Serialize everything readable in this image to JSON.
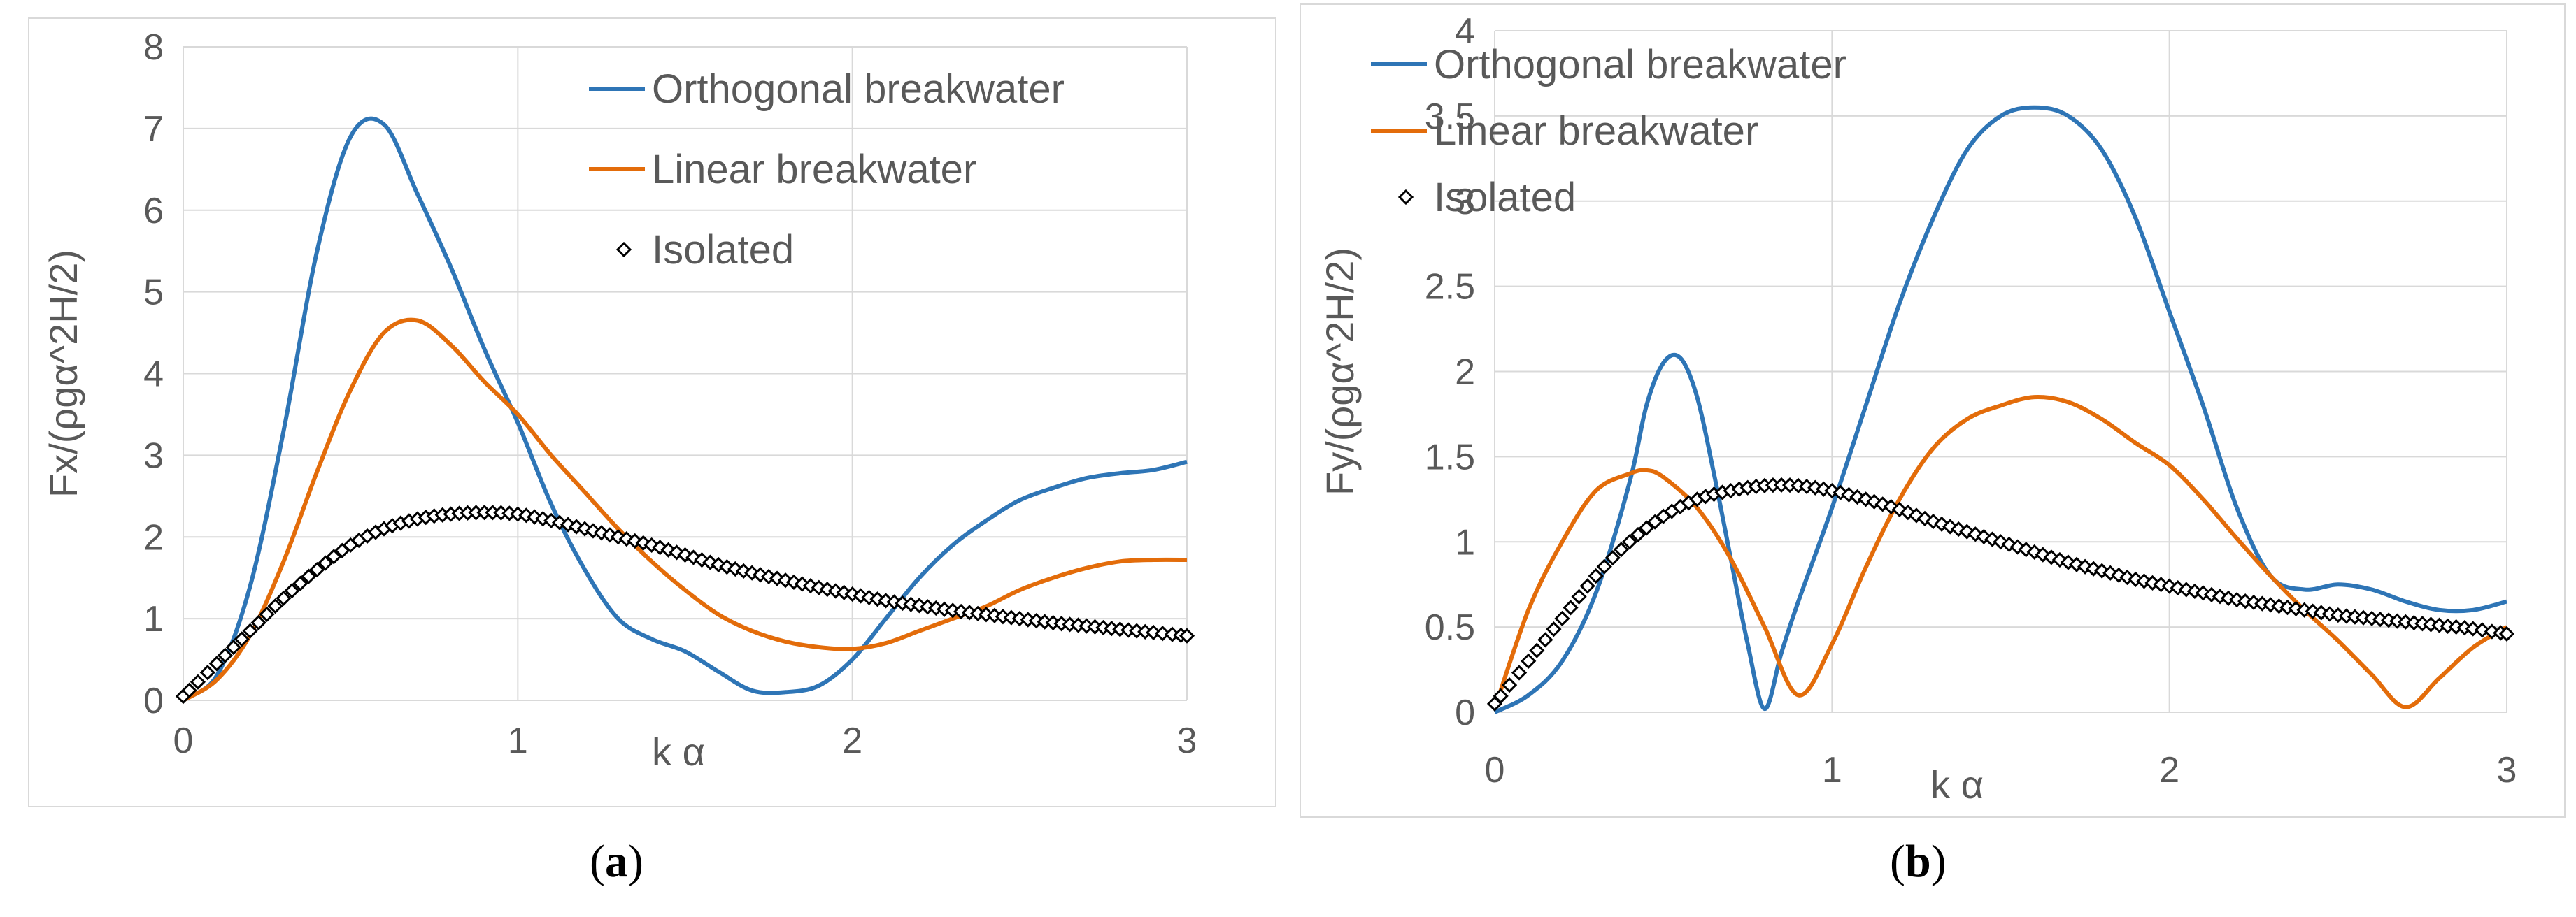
{
  "chart_data": [
    {
      "type": "line",
      "caption": "a",
      "xlabel": "k α",
      "ylabel": "Fx/(ρgα^2H/2)",
      "xlim": [
        0,
        3
      ],
      "ylim": [
        0,
        8
      ],
      "xticks": [
        "0",
        "1",
        "2",
        "3"
      ],
      "yticks": [
        "0",
        "1",
        "2",
        "3",
        "4",
        "5",
        "6",
        "7",
        "8"
      ],
      "grid": true,
      "legend_position": "top-right",
      "series": [
        {
          "name": "Orthogonal breakwater",
          "color": "#2e75b6",
          "style": "line",
          "x": [
            0,
            0.1,
            0.2,
            0.3,
            0.4,
            0.5,
            0.6,
            0.7,
            0.8,
            0.9,
            1.0,
            1.1,
            1.2,
            1.3,
            1.4,
            1.5,
            1.6,
            1.7,
            1.8,
            1.9,
            2.0,
            2.1,
            2.2,
            2.3,
            2.4,
            2.5,
            2.6,
            2.7,
            2.8,
            2.9,
            3.0
          ],
          "y": [
            0.02,
            0.3,
            1.4,
            3.3,
            5.5,
            6.9,
            7.05,
            6.2,
            5.3,
            4.3,
            3.4,
            2.4,
            1.6,
            1.0,
            0.75,
            0.6,
            0.35,
            0.12,
            0.1,
            0.18,
            0.5,
            1.0,
            1.5,
            1.9,
            2.2,
            2.45,
            2.6,
            2.72,
            2.78,
            2.82,
            2.92
          ]
        },
        {
          "name": "Linear breakwater",
          "color": "#e36c0a",
          "style": "line",
          "x": [
            0,
            0.1,
            0.2,
            0.3,
            0.4,
            0.5,
            0.6,
            0.7,
            0.8,
            0.9,
            1.0,
            1.1,
            1.2,
            1.3,
            1.4,
            1.5,
            1.6,
            1.7,
            1.8,
            1.9,
            2.0,
            2.1,
            2.2,
            2.3,
            2.4,
            2.5,
            2.6,
            2.7,
            2.8,
            2.9,
            3.0
          ],
          "y": [
            0,
            0.25,
            0.8,
            1.7,
            2.8,
            3.8,
            4.5,
            4.65,
            4.35,
            3.9,
            3.5,
            3.0,
            2.55,
            2.1,
            1.7,
            1.35,
            1.05,
            0.85,
            0.72,
            0.65,
            0.63,
            0.7,
            0.85,
            1.0,
            1.15,
            1.35,
            1.5,
            1.62,
            1.7,
            1.72,
            1.72
          ]
        },
        {
          "name": "Isolated",
          "color": "#000000",
          "style": "diamond-markers",
          "x": [
            0,
            0.1,
            0.2,
            0.3,
            0.4,
            0.5,
            0.6,
            0.7,
            0.8,
            0.9,
            1.0,
            1.1,
            1.2,
            1.3,
            1.4,
            1.5,
            1.6,
            1.7,
            1.8,
            1.9,
            2.0,
            2.1,
            2.2,
            2.3,
            2.4,
            2.5,
            2.6,
            2.7,
            2.8,
            2.9,
            3.0
          ],
          "y": [
            0.05,
            0.45,
            0.85,
            1.25,
            1.6,
            1.9,
            2.1,
            2.22,
            2.28,
            2.3,
            2.28,
            2.2,
            2.1,
            2.0,
            1.9,
            1.78,
            1.66,
            1.56,
            1.47,
            1.38,
            1.3,
            1.22,
            1.16,
            1.1,
            1.05,
            1.0,
            0.95,
            0.91,
            0.87,
            0.83,
            0.79
          ]
        }
      ]
    },
    {
      "type": "line",
      "caption": "b",
      "xlabel": "k α",
      "ylabel": "Fy/(ρgα^2H/2)",
      "xlim": [
        0,
        3
      ],
      "ylim": [
        0,
        4
      ],
      "xticks": [
        "0",
        "1",
        "2",
        "3"
      ],
      "yticks": [
        "0",
        "0.5",
        "1",
        "1.5",
        "2",
        "2.5",
        "3",
        "3.5",
        "4"
      ],
      "grid": true,
      "legend_position": "top-left",
      "series": [
        {
          "name": "Orthogonal breakwater",
          "color": "#2e75b6",
          "style": "line",
          "x": [
            0,
            0.1,
            0.2,
            0.3,
            0.4,
            0.45,
            0.5,
            0.55,
            0.6,
            0.65,
            0.7,
            0.75,
            0.8,
            0.85,
            0.9,
            1.0,
            1.1,
            1.2,
            1.3,
            1.4,
            1.5,
            1.6,
            1.7,
            1.8,
            1.9,
            2.0,
            2.1,
            2.2,
            2.3,
            2.4,
            2.5,
            2.6,
            2.7,
            2.8,
            2.9,
            3.0
          ],
          "y": [
            0,
            0.1,
            0.3,
            0.7,
            1.35,
            1.8,
            2.05,
            2.08,
            1.85,
            1.4,
            0.9,
            0.4,
            0.02,
            0.35,
            0.65,
            1.2,
            1.8,
            2.4,
            2.9,
            3.3,
            3.5,
            3.55,
            3.5,
            3.3,
            2.9,
            2.35,
            1.8,
            1.2,
            0.8,
            0.72,
            0.75,
            0.72,
            0.65,
            0.6,
            0.6,
            0.65
          ]
        },
        {
          "name": "Linear breakwater",
          "color": "#e36c0a",
          "style": "line",
          "x": [
            0,
            0.1,
            0.2,
            0.3,
            0.4,
            0.45,
            0.5,
            0.6,
            0.7,
            0.8,
            0.9,
            1.0,
            1.1,
            1.2,
            1.3,
            1.4,
            1.5,
            1.6,
            1.7,
            1.8,
            1.9,
            2.0,
            2.1,
            2.2,
            2.3,
            2.4,
            2.5,
            2.6,
            2.7,
            2.8,
            2.9,
            3.0
          ],
          "y": [
            0.02,
            0.6,
            1.0,
            1.3,
            1.4,
            1.42,
            1.38,
            1.2,
            0.9,
            0.5,
            0.1,
            0.4,
            0.85,
            1.25,
            1.55,
            1.72,
            1.8,
            1.85,
            1.82,
            1.72,
            1.58,
            1.45,
            1.25,
            1.02,
            0.8,
            0.6,
            0.42,
            0.22,
            0.03,
            0.2,
            0.38,
            0.5
          ]
        },
        {
          "name": "Isolated",
          "color": "#000000",
          "style": "diamond-markers",
          "x": [
            0,
            0.1,
            0.2,
            0.3,
            0.4,
            0.5,
            0.6,
            0.7,
            0.8,
            0.9,
            1.0,
            1.1,
            1.2,
            1.3,
            1.4,
            1.5,
            1.6,
            1.7,
            1.8,
            1.9,
            2.0,
            2.1,
            2.2,
            2.3,
            2.4,
            2.5,
            2.6,
            2.7,
            2.8,
            2.9,
            3.0
          ],
          "y": [
            0.05,
            0.3,
            0.55,
            0.8,
            1.0,
            1.15,
            1.25,
            1.3,
            1.33,
            1.33,
            1.3,
            1.25,
            1.19,
            1.12,
            1.06,
            1.0,
            0.94,
            0.88,
            0.83,
            0.78,
            0.74,
            0.7,
            0.66,
            0.63,
            0.6,
            0.57,
            0.55,
            0.53,
            0.51,
            0.49,
            0.46
          ]
        }
      ]
    }
  ]
}
